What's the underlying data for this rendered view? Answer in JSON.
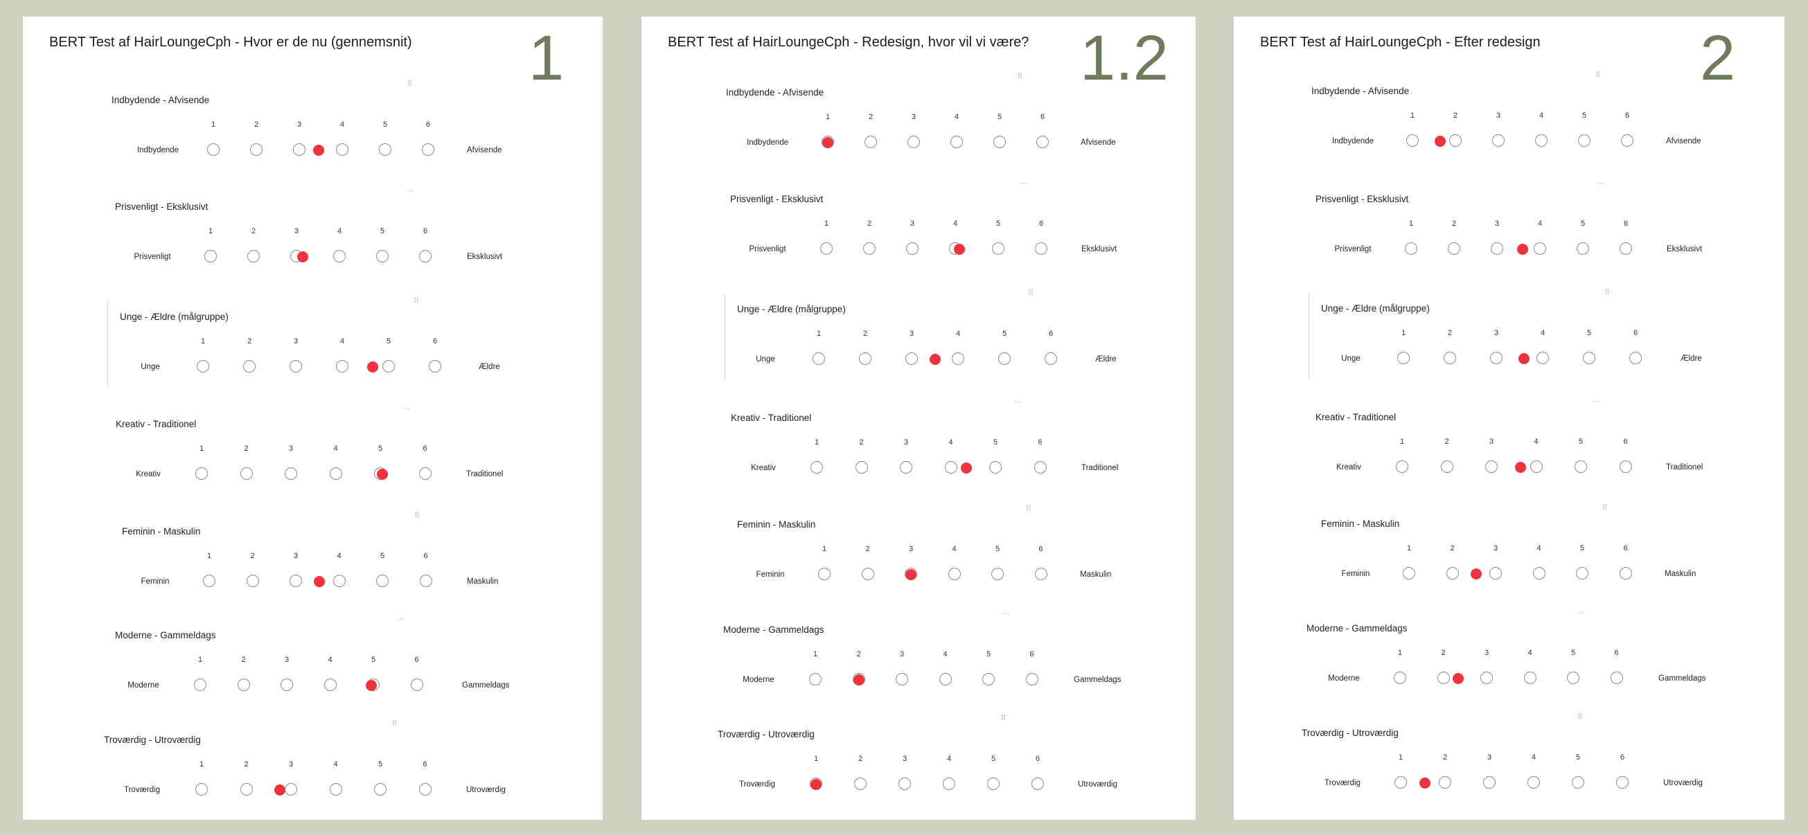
{
  "tests": [
    {
      "title": "BERT Test af HairLoungeCph - Hvor er de nu (gennemsnit)",
      "number": "1",
      "questions": [
        {
          "title": "Indbydende - Afvisende",
          "left": "Indbydende",
          "right": "Afvisende",
          "scale": [
            "1",
            "2",
            "3",
            "4",
            "5",
            "6"
          ],
          "mark": 3.45
        },
        {
          "title": "Prisvenligt - Eksklusivt",
          "left": "Prisvenligt",
          "right": "Eksklusivt",
          "scale": [
            "1",
            "2",
            "3",
            "4",
            "5",
            "6"
          ],
          "mark": 3.15
        },
        {
          "title": "Unge - Ældre (målgruppe)",
          "left": "Unge",
          "right": "Ældre",
          "scale": [
            "1",
            "2",
            "3",
            "4",
            "5",
            "6"
          ],
          "mark": 4.65
        },
        {
          "title": "Kreativ - Traditionel",
          "left": "Kreativ",
          "right": "Traditionel",
          "scale": [
            "1",
            "2",
            "3",
            "4",
            "5",
            "6"
          ],
          "mark": 5.05
        },
        {
          "title": "Feminin - Maskulin",
          "left": "Feminin",
          "right": "Maskulin",
          "scale": [
            "1",
            "2",
            "3",
            "4",
            "5",
            "6"
          ],
          "mark": 3.55
        },
        {
          "title": "Moderne - Gammeldags",
          "left": "Moderne",
          "right": "Gammeldags",
          "scale": [
            "1",
            "2",
            "3",
            "4",
            "5",
            "6"
          ],
          "mark": 4.95
        },
        {
          "title": "Troværdig - Utroværdig",
          "left": "Troværdig",
          "right": "Utroværdig",
          "scale": [
            "1",
            "2",
            "3",
            "4",
            "5",
            "6"
          ],
          "mark": 2.75
        }
      ]
    },
    {
      "title": "BERT Test af HairLoungeCph - Redesign, hvor vil vi være?",
      "number": "1.2",
      "questions": [
        {
          "title": "Indbydende - Afvisende",
          "left": "Indbydende",
          "right": "Afvisende",
          "scale": [
            "1",
            "2",
            "3",
            "4",
            "5",
            "6"
          ],
          "mark": 1.0
        },
        {
          "title": "Prisvenligt - Eksklusivt",
          "left": "Prisvenligt",
          "right": "Eksklusivt",
          "scale": [
            "1",
            "2",
            "3",
            "4",
            "5",
            "6"
          ],
          "mark": 4.1
        },
        {
          "title": "Unge - Ældre (målgruppe)",
          "left": "Unge",
          "right": "Ældre",
          "scale": [
            "1",
            "2",
            "3",
            "4",
            "5",
            "6"
          ],
          "mark": 3.5
        },
        {
          "title": "Kreativ - Traditionel",
          "left": "Kreativ",
          "right": "Traditionel",
          "scale": [
            "1",
            "2",
            "3",
            "4",
            "5",
            "6"
          ],
          "mark": 4.35
        },
        {
          "title": "Feminin - Maskulin",
          "left": "Feminin",
          "right": "Maskulin",
          "scale": [
            "1",
            "2",
            "3",
            "4",
            "5",
            "6"
          ],
          "mark": 3.0
        },
        {
          "title": "Moderne - Gammeldags",
          "left": "Moderne",
          "right": "Gammeldags",
          "scale": [
            "1",
            "2",
            "3",
            "4",
            "5",
            "6"
          ],
          "mark": 2.0
        },
        {
          "title": "Troværdig - Utroværdig",
          "left": "Troværdig",
          "right": "Utroværdig",
          "scale": [
            "1",
            "2",
            "3",
            "4",
            "5",
            "6"
          ],
          "mark": 1.0
        }
      ]
    },
    {
      "title": "BERT Test af HairLoungeCph - Efter redesign",
      "number": "2",
      "questions": [
        {
          "title": "Indbydende - Afvisende",
          "left": "Indbydende",
          "right": "Afvisende",
          "scale": [
            "1",
            "2",
            "3",
            "4",
            "5",
            "6"
          ],
          "mark": 1.65
        },
        {
          "title": "Prisvenligt - Eksklusivt",
          "left": "Prisvenligt",
          "right": "Eksklusivt",
          "scale": [
            "1",
            "2",
            "3",
            "4",
            "5",
            "6"
          ],
          "mark": 3.6
        },
        {
          "title": "Unge - Ældre (målgruppe)",
          "left": "Unge",
          "right": "Ældre",
          "scale": [
            "1",
            "2",
            "3",
            "4",
            "5",
            "6"
          ],
          "mark": 3.6
        },
        {
          "title": "Kreativ - Traditionel",
          "left": "Kreativ",
          "right": "Traditionel",
          "scale": [
            "1",
            "2",
            "3",
            "4",
            "5",
            "6"
          ],
          "mark": 3.65
        },
        {
          "title": "Feminin - Maskulin",
          "left": "Feminin",
          "right": "Maskulin",
          "scale": [
            "1",
            "2",
            "3",
            "4",
            "5",
            "6"
          ],
          "mark": 2.55
        },
        {
          "title": "Moderne - Gammeldags",
          "left": "Moderne",
          "right": "Gammeldags",
          "scale": [
            "1",
            "2",
            "3",
            "4",
            "5",
            "6"
          ],
          "mark": 2.35
        },
        {
          "title": "Troværdig - Utroværdig",
          "left": "Troværdig",
          "right": "Utroværdig",
          "scale": [
            "1",
            "2",
            "3",
            "4",
            "5",
            "6"
          ],
          "mark": 1.55
        }
      ]
    }
  ],
  "colors": {
    "background": "#d0d0c1",
    "mark": "#f0323f",
    "number": "#707a5c"
  }
}
